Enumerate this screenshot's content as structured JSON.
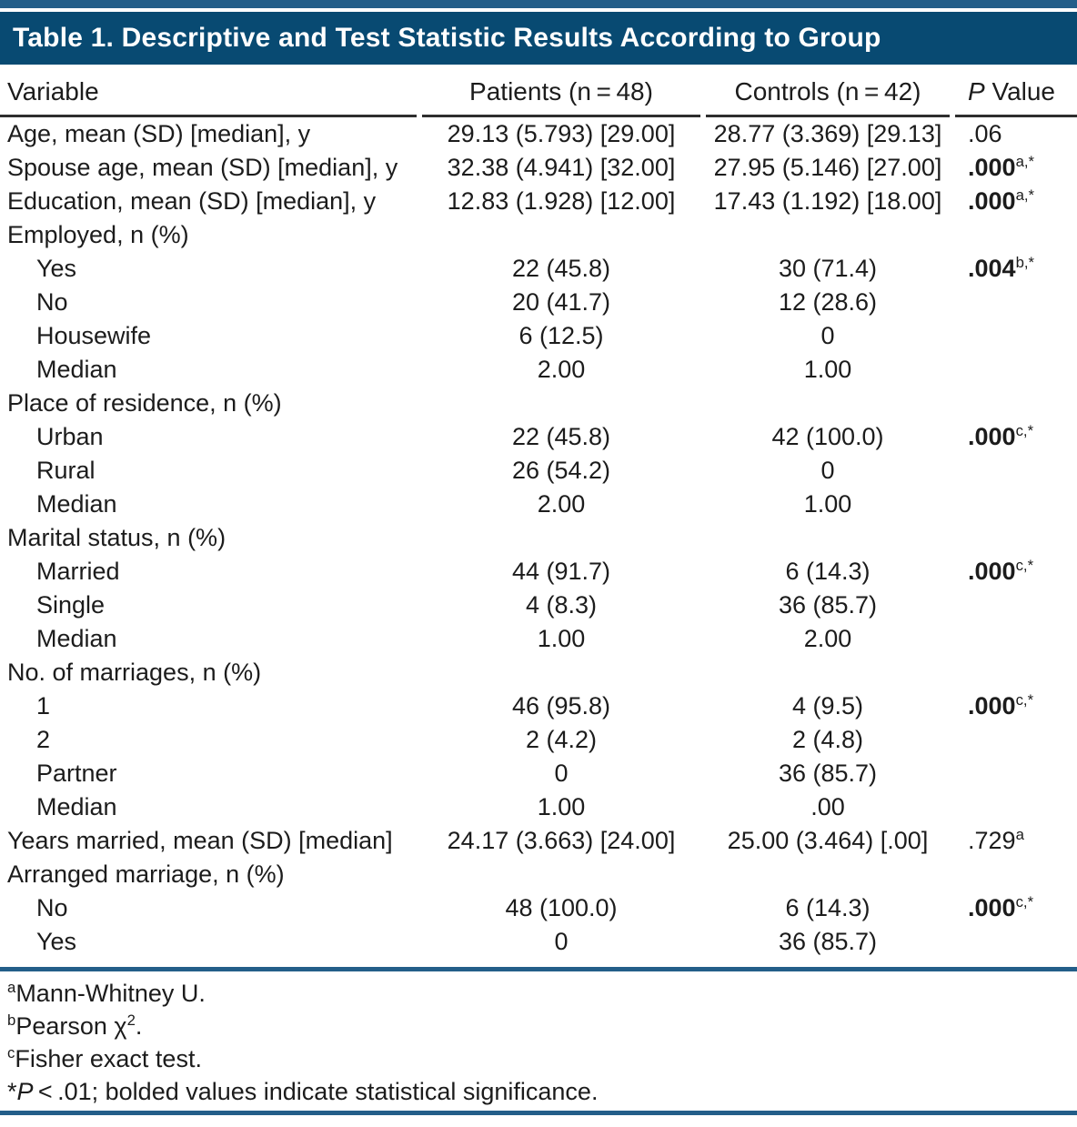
{
  "title": "Table 1. Descriptive and Test Statistic Results According to Group",
  "columns": {
    "variable": "Variable",
    "patients": "Patients (n = 48)",
    "controls": "Controls (n = 42)",
    "p_italic": "P",
    "p_rest": " Value"
  },
  "rows": [
    {
      "label": "Age, mean (SD) [median], y",
      "patients": "29.13 (5.793) [29.00]",
      "controls": "28.77 (3.369) [29.13]",
      "p": ".06",
      "p_bold": false,
      "p_sup": ""
    },
    {
      "label": "Spouse age, mean (SD) [median], y",
      "patients": "32.38 (4.941) [32.00]",
      "controls": "27.95 (5.146) [27.00]",
      "p": ".000",
      "p_bold": true,
      "p_sup": "a,*"
    },
    {
      "label": "Education, mean (SD) [median], y",
      "patients": "12.83 (1.928) [12.00]",
      "controls": "17.43 (1.192) [18.00]",
      "p": ".000",
      "p_bold": true,
      "p_sup": "a,*"
    },
    {
      "label": "Employed, n (%)",
      "section": true
    },
    {
      "label": "Yes",
      "indent": true,
      "patients": "22 (45.8)",
      "controls": "30 (71.4)",
      "p": ".004",
      "p_bold": true,
      "p_sup": "b,*"
    },
    {
      "label": "No",
      "indent": true,
      "patients": "20 (41.7)",
      "controls": "12 (28.6)"
    },
    {
      "label": "Housewife",
      "indent": true,
      "patients": "6 (12.5)",
      "controls": "0"
    },
    {
      "label": "Median",
      "indent": true,
      "patients": "2.00",
      "controls": "1.00"
    },
    {
      "label": "Place of residence, n (%)",
      "section": true
    },
    {
      "label": "Urban",
      "indent": true,
      "patients": "22 (45.8)",
      "controls": "42 (100.0)",
      "p": ".000",
      "p_bold": true,
      "p_sup": "c,*"
    },
    {
      "label": "Rural",
      "indent": true,
      "patients": "26 (54.2)",
      "controls": "0"
    },
    {
      "label": "Median",
      "indent": true,
      "patients": "2.00",
      "controls": "1.00"
    },
    {
      "label": "Marital status, n (%)",
      "section": true
    },
    {
      "label": "Married",
      "indent": true,
      "patients": "44 (91.7)",
      "controls": "6 (14.3)",
      "p": ".000",
      "p_bold": true,
      "p_sup": "c,*"
    },
    {
      "label": "Single",
      "indent": true,
      "patients": "4 (8.3)",
      "controls": "36 (85.7)"
    },
    {
      "label": "Median",
      "indent": true,
      "patients": "1.00",
      "controls": "2.00"
    },
    {
      "label": "No. of marriages, n (%)",
      "section": true
    },
    {
      "label": "1",
      "indent": true,
      "patients": "46 (95.8)",
      "controls": "4 (9.5)",
      "p": ".000",
      "p_bold": true,
      "p_sup": "c,*"
    },
    {
      "label": "2",
      "indent": true,
      "patients": "2 (4.2)",
      "controls": "2 (4.8)"
    },
    {
      "label": "Partner",
      "indent": true,
      "patients": "0",
      "controls": "36 (85.7)"
    },
    {
      "label": "Median",
      "indent": true,
      "patients": "1.00",
      "controls": ".00"
    },
    {
      "label": "Years married, mean (SD) [median]",
      "patients": "24.17 (3.663) [24.00]",
      "controls": "25.00 (3.464) [.00]",
      "p": ".729",
      "p_bold": false,
      "p_sup": "a"
    },
    {
      "label": "Arranged marriage, n (%)",
      "section": true
    },
    {
      "label": "No",
      "indent": true,
      "patients": "48 (100.0)",
      "controls": "6 (14.3)",
      "p": ".000",
      "p_bold": true,
      "p_sup": "c,*"
    },
    {
      "label": "Yes",
      "indent": true,
      "patients": "0",
      "controls": "36 (85.7)"
    }
  ],
  "footnotes": [
    {
      "parts": [
        {
          "text": "a",
          "sup": true
        },
        {
          "text": "Mann-Whitney U."
        }
      ]
    },
    {
      "parts": [
        {
          "text": "b",
          "sup": true
        },
        {
          "text": "Pearson χ"
        },
        {
          "text": "2",
          "sup": true
        },
        {
          "text": "."
        }
      ]
    },
    {
      "parts": [
        {
          "text": "c",
          "sup": true
        },
        {
          "text": "Fisher exact test."
        }
      ]
    },
    {
      "parts": [
        {
          "text": "*"
        },
        {
          "text": "P",
          "italic": true
        },
        {
          "text": " < .01; bolded values indicate statistical significance."
        }
      ]
    }
  ],
  "colors": {
    "band": "#084a72",
    "accent_line": "#235e89",
    "rule": "#2e2e2e",
    "text": "#1c1c1c"
  }
}
